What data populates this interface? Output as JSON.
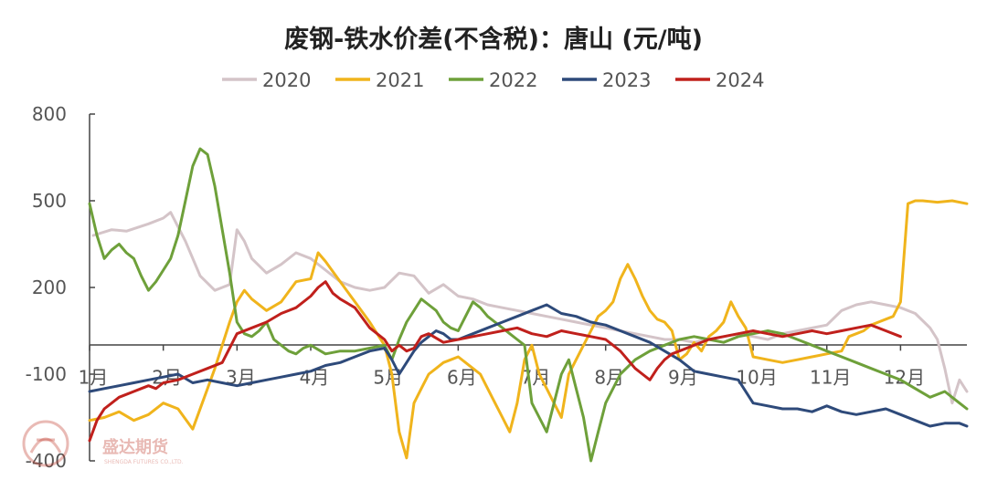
{
  "chart_data": {
    "type": "line",
    "title": "废钢-铁水价差(不含税)：唐山 (元/吨)",
    "xlabel": "",
    "ylabel": "",
    "ylim": [
      -400,
      800
    ],
    "yticks": [
      800,
      500,
      200,
      -100,
      -400
    ],
    "ytick_labels": [
      "800",
      "500",
      "200",
      "-100",
      "-400"
    ],
    "xlim": [
      1,
      12.9
    ],
    "months": [
      1,
      2,
      3,
      4,
      5,
      6,
      7,
      8,
      9,
      10,
      11,
      12
    ],
    "month_labels": [
      "1月",
      "2月",
      "3月",
      "4月",
      "5月",
      "6月",
      "7月",
      "8月",
      "9月",
      "10月",
      "11月",
      "12月"
    ],
    "legend_position": "top",
    "grid": false,
    "series": [
      {
        "name": "2020",
        "color": "#d4c4c8",
        "x": [
          1.05,
          1.3,
          1.5,
          1.8,
          2.0,
          2.1,
          2.3,
          2.5,
          2.7,
          2.8,
          2.9,
          3.0,
          3.1,
          3.2,
          3.4,
          3.6,
          3.8,
          4.0,
          4.2,
          4.4,
          4.6,
          4.8,
          5.0,
          5.2,
          5.4,
          5.6,
          5.8,
          6.0,
          6.2,
          6.4,
          6.6,
          6.8,
          7.0,
          7.2,
          7.4,
          7.6,
          7.8,
          8.0,
          8.2,
          8.4,
          8.6,
          8.8,
          9.0,
          9.2,
          9.4,
          9.6,
          9.8,
          10.0,
          10.2,
          10.4,
          10.6,
          10.8,
          11.0,
          11.2,
          11.4,
          11.6,
          11.8,
          12.0,
          12.2,
          12.4,
          12.5,
          12.6,
          12.7,
          12.8,
          12.9
        ],
        "y": [
          380,
          400,
          395,
          420,
          440,
          460,
          360,
          240,
          190,
          200,
          210,
          400,
          360,
          300,
          250,
          280,
          320,
          300,
          260,
          220,
          200,
          190,
          200,
          250,
          240,
          180,
          210,
          170,
          160,
          140,
          130,
          120,
          110,
          100,
          90,
          80,
          70,
          60,
          50,
          40,
          30,
          20,
          20,
          10,
          20,
          30,
          40,
          30,
          20,
          40,
          50,
          60,
          70,
          120,
          140,
          150,
          140,
          130,
          110,
          60,
          20,
          -80,
          -200,
          -120,
          -160
        ]
      },
      {
        "name": "2021",
        "color": "#f0b41c",
        "x": [
          1.0,
          1.2,
          1.4,
          1.6,
          1.8,
          2.0,
          2.2,
          2.4,
          2.6,
          2.7,
          2.8,
          2.9,
          3.0,
          3.1,
          3.2,
          3.4,
          3.6,
          3.8,
          4.0,
          4.1,
          4.2,
          4.4,
          4.6,
          4.8,
          5.0,
          5.1,
          5.2,
          5.3,
          5.4,
          5.5,
          5.6,
          5.7,
          5.8,
          5.9,
          6.0,
          6.1,
          6.2,
          6.3,
          6.4,
          6.5,
          6.6,
          6.7,
          6.8,
          6.9,
          7.0,
          7.1,
          7.2,
          7.3,
          7.4,
          7.5,
          7.6,
          7.7,
          7.8,
          7.9,
          8.0,
          8.1,
          8.2,
          8.3,
          8.4,
          8.5,
          8.6,
          8.7,
          8.8,
          8.9,
          9.0,
          9.1,
          9.2,
          9.3,
          9.4,
          9.5,
          9.6,
          9.7,
          9.8,
          9.9,
          10.0,
          10.2,
          10.4,
          10.6,
          10.8,
          11.0,
          11.2,
          11.3,
          11.4,
          11.5,
          11.6,
          11.7,
          11.8,
          11.9,
          12.0,
          12.1,
          12.2,
          12.3,
          12.5,
          12.7,
          12.9
        ],
        "y": [
          -260,
          -250,
          -230,
          -260,
          -240,
          -200,
          -220,
          -290,
          -150,
          -80,
          0,
          80,
          150,
          190,
          160,
          120,
          150,
          220,
          230,
          320,
          290,
          220,
          150,
          80,
          0,
          -100,
          -300,
          -390,
          -200,
          -150,
          -100,
          -80,
          -60,
          -50,
          -40,
          -60,
          -80,
          -100,
          -150,
          -200,
          -250,
          -300,
          -200,
          -50,
          0,
          -100,
          -150,
          -200,
          -250,
          -100,
          -50,
          0,
          50,
          100,
          120,
          150,
          230,
          280,
          230,
          170,
          120,
          90,
          80,
          50,
          -50,
          -30,
          10,
          -20,
          30,
          50,
          80,
          150,
          100,
          60,
          -40,
          -50,
          -60,
          -50,
          -40,
          -30,
          -20,
          30,
          40,
          50,
          70,
          80,
          90,
          100,
          150,
          490,
          500,
          500,
          495,
          500,
          490
        ]
      },
      {
        "name": "2022",
        "color": "#6ea03a",
        "x": [
          1.0,
          1.1,
          1.2,
          1.3,
          1.4,
          1.5,
          1.6,
          1.7,
          1.8,
          1.9,
          2.0,
          2.1,
          2.2,
          2.3,
          2.4,
          2.5,
          2.6,
          2.7,
          2.8,
          2.9,
          3.0,
          3.1,
          3.2,
          3.3,
          3.4,
          3.5,
          3.6,
          3.7,
          3.8,
          3.9,
          4.0,
          4.2,
          4.4,
          4.6,
          4.8,
          5.0,
          5.1,
          5.2,
          5.3,
          5.4,
          5.5,
          5.6,
          5.7,
          5.8,
          5.9,
          6.0,
          6.1,
          6.2,
          6.3,
          6.4,
          6.5,
          6.6,
          6.7,
          6.8,
          6.9,
          7.0,
          7.1,
          7.2,
          7.3,
          7.4,
          7.5,
          7.6,
          7.7,
          7.8,
          7.9,
          8.0,
          8.2,
          8.4,
          8.6,
          8.8,
          9.0,
          9.2,
          9.4,
          9.6,
          9.8,
          10.0,
          10.2,
          10.4,
          10.6,
          10.8,
          11.0,
          11.2,
          11.4,
          11.6,
          11.8,
          12.0,
          12.2,
          12.4,
          12.6,
          12.8,
          12.9
        ],
        "y": [
          490,
          380,
          300,
          330,
          350,
          320,
          300,
          240,
          190,
          220,
          260,
          300,
          380,
          500,
          620,
          680,
          660,
          550,
          400,
          250,
          80,
          40,
          30,
          50,
          80,
          20,
          0,
          -20,
          -30,
          -10,
          0,
          -30,
          -20,
          -20,
          -10,
          0,
          -50,
          20,
          80,
          120,
          160,
          140,
          120,
          80,
          60,
          50,
          100,
          150,
          130,
          100,
          80,
          60,
          40,
          20,
          0,
          -200,
          -250,
          -300,
          -200,
          -100,
          -50,
          -150,
          -250,
          -400,
          -300,
          -200,
          -100,
          -50,
          -20,
          0,
          20,
          30,
          20,
          10,
          30,
          40,
          50,
          40,
          20,
          0,
          -20,
          -40,
          -60,
          -80,
          -100,
          -120,
          -150,
          -180,
          -160,
          -200,
          -220
        ]
      },
      {
        "name": "2023",
        "color": "#2e4a7a",
        "x": [
          1.0,
          1.2,
          1.4,
          1.6,
          1.8,
          2.0,
          2.2,
          2.4,
          2.6,
          2.8,
          3.0,
          3.2,
          3.4,
          3.6,
          3.8,
          4.0,
          4.2,
          4.4,
          4.6,
          4.8,
          5.0,
          5.1,
          5.2,
          5.3,
          5.4,
          5.5,
          5.6,
          5.7,
          5.8,
          5.9,
          6.0,
          6.2,
          6.4,
          6.6,
          6.8,
          7.0,
          7.2,
          7.4,
          7.6,
          7.8,
          8.0,
          8.2,
          8.4,
          8.6,
          8.8,
          9.0,
          9.2,
          9.4,
          9.6,
          9.8,
          10.0,
          10.2,
          10.4,
          10.6,
          10.8,
          11.0,
          11.2,
          11.4,
          11.6,
          11.8,
          12.0,
          12.2,
          12.4,
          12.6,
          12.8,
          12.9
        ],
        "y": [
          -160,
          -150,
          -140,
          -130,
          -120,
          -110,
          -100,
          -130,
          -120,
          -130,
          -140,
          -130,
          -120,
          -110,
          -100,
          -90,
          -70,
          -60,
          -40,
          -20,
          -10,
          -50,
          -100,
          -60,
          -20,
          10,
          30,
          50,
          40,
          20,
          20,
          40,
          60,
          80,
          100,
          120,
          140,
          110,
          100,
          80,
          70,
          50,
          30,
          10,
          -20,
          -50,
          -90,
          -100,
          -110,
          -120,
          -200,
          -210,
          -220,
          -220,
          -230,
          -210,
          -230,
          -240,
          -230,
          -220,
          -240,
          -260,
          -280,
          -270,
          -270,
          -280
        ]
      },
      {
        "name": "2024",
        "color": "#c0201c",
        "x": [
          1.0,
          1.1,
          1.2,
          1.3,
          1.4,
          1.5,
          1.6,
          1.7,
          1.8,
          1.9,
          2.0,
          2.2,
          2.4,
          2.6,
          2.8,
          3.0,
          3.2,
          3.4,
          3.6,
          3.8,
          4.0,
          4.1,
          4.2,
          4.3,
          4.4,
          4.6,
          4.8,
          5.0,
          5.1,
          5.2,
          5.3,
          5.4,
          5.5,
          5.6,
          5.8,
          6.0,
          6.2,
          6.4,
          6.6,
          6.8,
          7.0,
          7.2,
          7.4,
          7.6,
          7.8,
          8.0,
          8.1,
          8.2,
          8.3,
          8.4,
          8.5,
          8.6,
          8.7,
          8.8,
          8.9,
          9.0,
          9.2,
          9.4,
          9.6,
          9.8,
          10.0,
          10.2,
          10.4,
          10.6,
          10.8,
          11.0,
          11.2,
          11.4,
          11.6,
          11.8,
          12.0
        ],
        "y": [
          -330,
          -260,
          -220,
          -200,
          -180,
          -170,
          -160,
          -150,
          -140,
          -150,
          -130,
          -120,
          -100,
          -80,
          -60,
          40,
          60,
          80,
          110,
          130,
          170,
          200,
          220,
          180,
          160,
          130,
          60,
          20,
          -20,
          0,
          -20,
          -10,
          30,
          40,
          10,
          20,
          30,
          40,
          50,
          60,
          40,
          30,
          50,
          40,
          30,
          20,
          0,
          -20,
          -50,
          -80,
          -100,
          -120,
          -80,
          -50,
          -30,
          -20,
          0,
          20,
          30,
          40,
          50,
          40,
          30,
          40,
          50,
          40,
          50,
          60,
          70,
          50,
          30
        ]
      }
    ]
  }
}
